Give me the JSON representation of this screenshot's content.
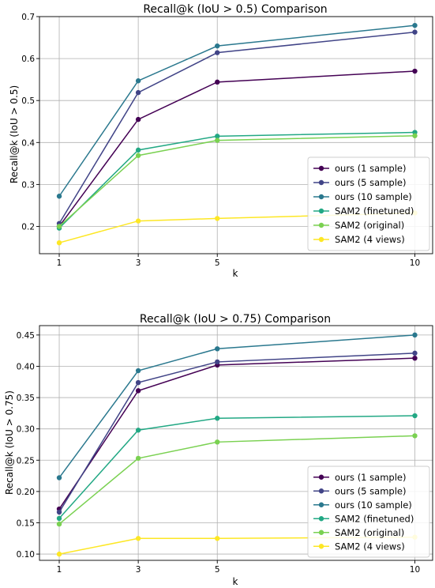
{
  "chart_data": [
    {
      "type": "line",
      "title": "Recall@k (IoU > 0.5) Comparison",
      "xlabel": "k",
      "ylabel": "Recall@k (IoU > 0.5)",
      "x": [
        1,
        3,
        5,
        10
      ],
      "x_tick_labels": [
        "1",
        "3",
        "5",
        "10"
      ],
      "xlim": [
        0.5,
        10.45
      ],
      "ylim": [
        0.135,
        0.7
      ],
      "y_ticks": [
        0.2,
        0.3,
        0.4,
        0.5,
        0.6,
        0.7
      ],
      "y_tick_labels": [
        "0.2",
        "0.3",
        "0.4",
        "0.5",
        "0.6",
        "0.7"
      ],
      "grid": true,
      "legend_position": "lower-right",
      "series": [
        {
          "name": "ours (1 sample)",
          "color": "#440154",
          "values": [
            0.2,
            0.455,
            0.544,
            0.57
          ]
        },
        {
          "name": "ours (5 sample)",
          "color": "#414487",
          "values": [
            0.207,
            0.519,
            0.614,
            0.663
          ]
        },
        {
          "name": "ours (10 sample)",
          "color": "#2a788e",
          "values": [
            0.272,
            0.547,
            0.63,
            0.679
          ]
        },
        {
          "name": "SAM2 (finetuned)",
          "color": "#22a884",
          "values": [
            0.196,
            0.382,
            0.415,
            0.424
          ]
        },
        {
          "name": "SAM2 (original)",
          "color": "#7ad151",
          "values": [
            0.2,
            0.369,
            0.405,
            0.416
          ]
        },
        {
          "name": "SAM2 (4 views)",
          "color": "#fde725",
          "values": [
            0.161,
            0.213,
            0.219,
            0.232
          ]
        }
      ]
    },
    {
      "type": "line",
      "title": "Recall@k (IoU > 0.75) Comparison",
      "xlabel": "k",
      "ylabel": "Recall@k (IoU > 0.75)",
      "x": [
        1,
        3,
        5,
        10
      ],
      "x_tick_labels": [
        "1",
        "3",
        "5",
        "10"
      ],
      "xlim": [
        0.5,
        10.45
      ],
      "ylim": [
        0.09,
        0.465
      ],
      "y_ticks": [
        0.1,
        0.15,
        0.2,
        0.25,
        0.3,
        0.35,
        0.4,
        0.45
      ],
      "y_tick_labels": [
        "0.10",
        "0.15",
        "0.20",
        "0.25",
        "0.30",
        "0.35",
        "0.40",
        "0.45"
      ],
      "grid": true,
      "legend_position": "lower-right",
      "series": [
        {
          "name": "ours (1 sample)",
          "color": "#440154",
          "values": [
            0.172,
            0.361,
            0.402,
            0.413
          ]
        },
        {
          "name": "ours (5 sample)",
          "color": "#414487",
          "values": [
            0.167,
            0.374,
            0.407,
            0.421
          ]
        },
        {
          "name": "ours (10 sample)",
          "color": "#2a788e",
          "values": [
            0.222,
            0.393,
            0.428,
            0.45
          ]
        },
        {
          "name": "SAM2 (finetuned)",
          "color": "#22a884",
          "values": [
            0.157,
            0.298,
            0.317,
            0.321
          ]
        },
        {
          "name": "SAM2 (original)",
          "color": "#7ad151",
          "values": [
            0.148,
            0.253,
            0.279,
            0.289
          ]
        },
        {
          "name": "SAM2 (4 views)",
          "color": "#fde725",
          "values": [
            0.1,
            0.125,
            0.125,
            0.127
          ]
        }
      ]
    }
  ]
}
